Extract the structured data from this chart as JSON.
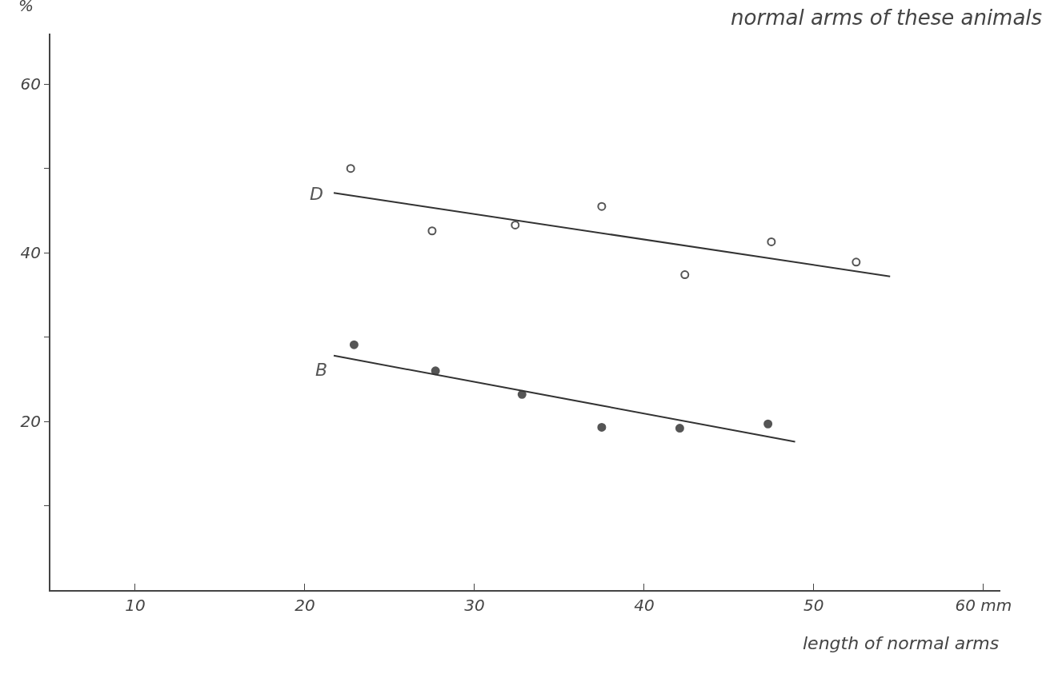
{
  "chart_data": {
    "type": "scatter",
    "title": "normal arms of these animals",
    "xlabel": "length of normal arms",
    "ylabel": "%",
    "xlim": [
      5,
      61
    ],
    "ylim": [
      0,
      66
    ],
    "xticks": [
      10,
      20,
      30,
      40,
      50,
      {
        "value": 60,
        "label": "60 mm"
      }
    ],
    "yticks": [
      {
        "value": 10,
        "label": null
      },
      20,
      {
        "value": 30,
        "label": null
      },
      40,
      {
        "value": 50,
        "label": null
      },
      60
    ],
    "grid": false,
    "legend": false,
    "series": [
      {
        "name": "D",
        "color": "#555555",
        "marker": "circle-open",
        "x": [
          22.7,
          27.5,
          32.4,
          37.5,
          42.4,
          47.5,
          52.5
        ],
        "values": [
          50.0,
          42.6,
          43.3,
          45.5,
          37.4,
          41.3,
          38.9
        ]
      },
      {
        "name": "B",
        "color": "#555555",
        "marker": "circle",
        "x": [
          22.9,
          27.7,
          32.8,
          37.5,
          42.1,
          47.3
        ],
        "values": [
          29.1,
          26.0,
          23.2,
          19.3,
          19.2,
          19.7
        ]
      },
      {
        "type": "line",
        "color": "#333333",
        "marker": "none",
        "x": [
          21.7,
          54.5
        ],
        "values": [
          47.1,
          37.2
        ]
      },
      {
        "type": "line",
        "color": "#333333",
        "marker": "none",
        "x": [
          21.7,
          48.9
        ],
        "values": [
          27.8,
          17.6
        ]
      }
    ]
  }
}
